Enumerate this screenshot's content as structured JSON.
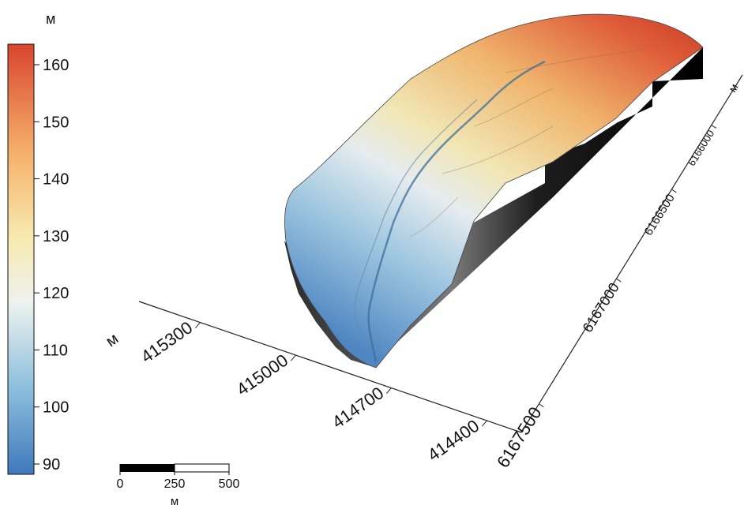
{
  "colorbar": {
    "unit": "м",
    "ticks": [
      "160",
      "150",
      "140",
      "130",
      "120",
      "110",
      "100",
      "90"
    ],
    "colors": [
      "#4d86c4",
      "#90c0dd",
      "#f3f0dd",
      "#f7e4a1",
      "#f5b06a",
      "#e4533b"
    ]
  },
  "x_axis": {
    "unit": "м",
    "ticks": [
      "415300",
      "415000",
      "414700",
      "414400"
    ]
  },
  "y_axis": {
    "unit": "м",
    "ticks": [
      "6167500",
      "6167000",
      "6166500",
      "6166000"
    ]
  },
  "scale_bar": {
    "labels": [
      "0",
      "250",
      "500"
    ],
    "unit": "м"
  }
}
